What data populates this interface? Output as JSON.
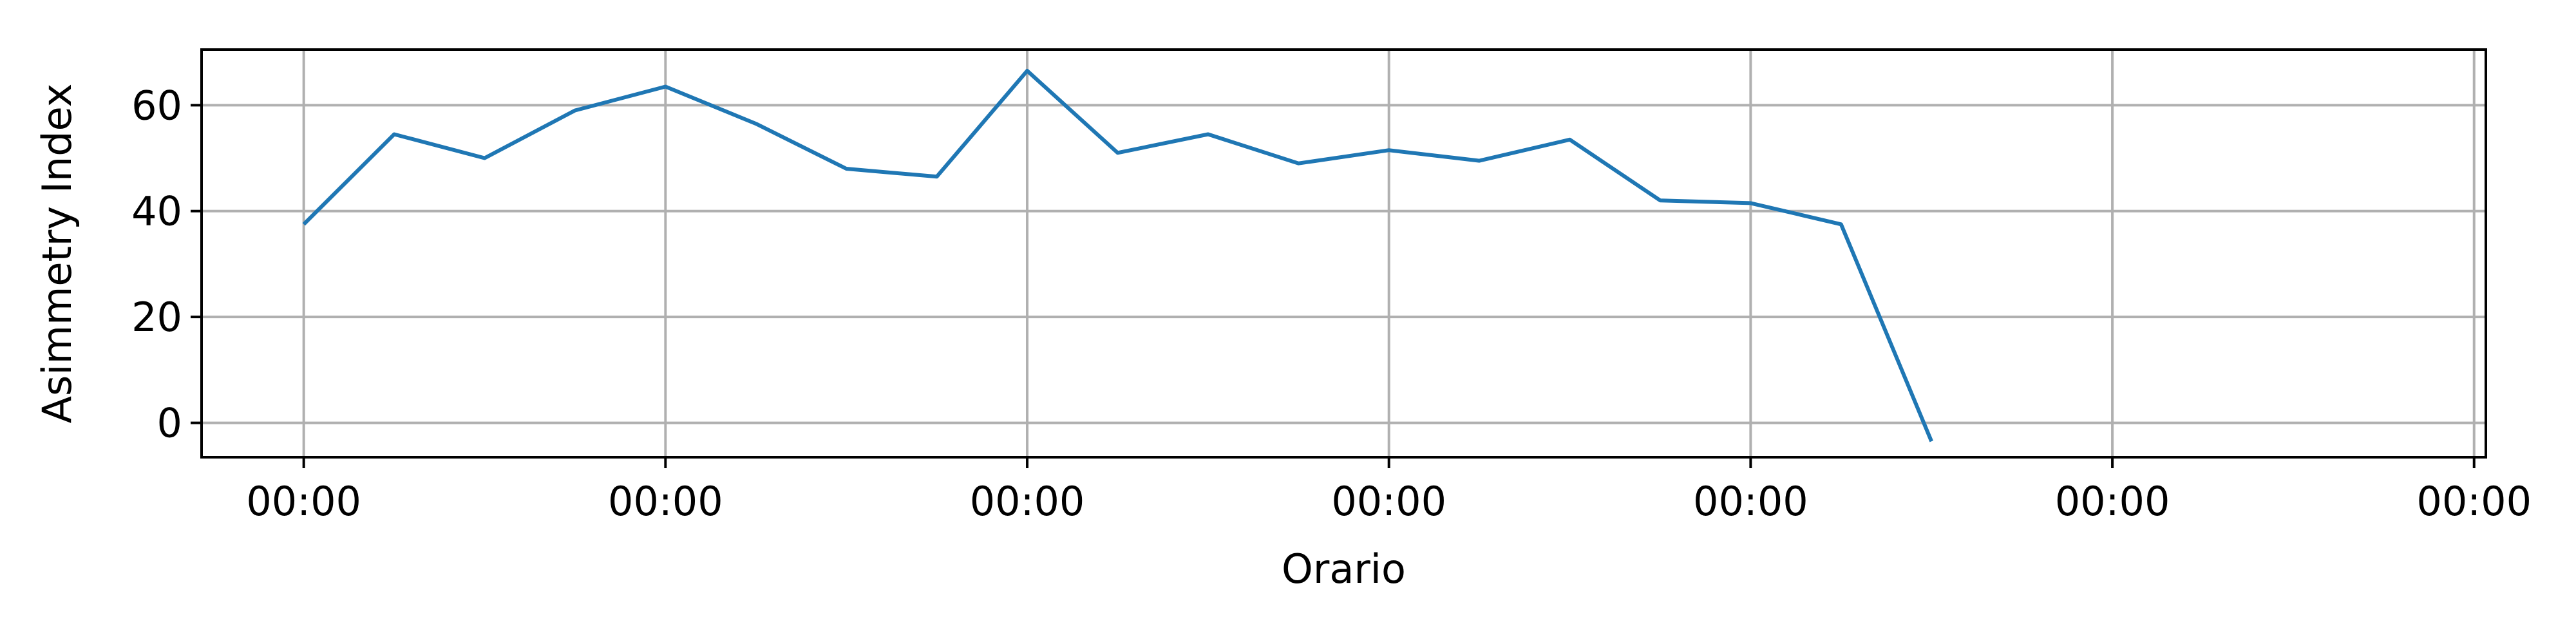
{
  "chart_data": {
    "type": "line",
    "title": "",
    "xlabel": "Orario",
    "ylabel": "Asimmetry Index",
    "x_tick_labels": [
      "00:00",
      "00:00",
      "00:00",
      "00:00",
      "00:00",
      "00:00",
      "00:00"
    ],
    "x_tick_values": [
      0,
      4,
      8,
      12,
      16,
      20,
      24
    ],
    "xlim": [
      -1.13,
      24.13
    ],
    "y_ticks": [
      0,
      20,
      40,
      60
    ],
    "ylim": [
      -6.5,
      70.5
    ],
    "grid": true,
    "series": [
      {
        "color": "#1f77b4",
        "x": [
          0,
          1,
          2,
          3,
          4,
          5,
          6,
          7,
          8,
          9,
          10,
          11,
          12,
          13,
          14,
          15,
          16,
          17,
          18
        ],
        "y": [
          37.5,
          54.5,
          50.0,
          59.0,
          63.5,
          56.5,
          48.0,
          46.5,
          66.5,
          51.0,
          54.5,
          49.0,
          51.5,
          49.5,
          53.5,
          42.0,
          41.5,
          37.5,
          -3.5
        ]
      }
    ]
  }
}
